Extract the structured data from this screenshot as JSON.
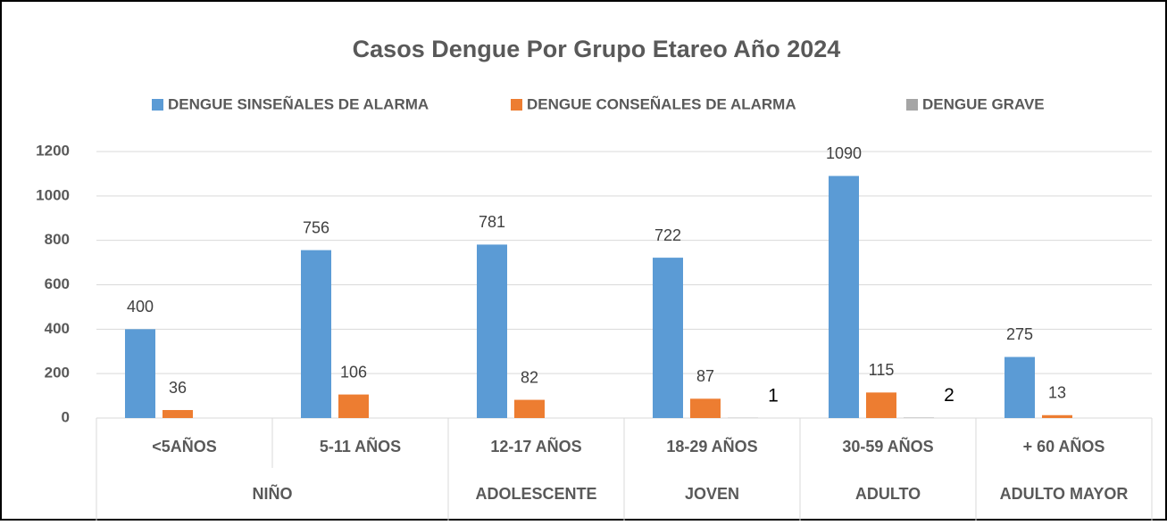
{
  "chart_data": {
    "type": "bar",
    "title": "Casos Dengue Por Grupo  Etareo Año 2024",
    "groups": [
      {
        "label": "NIÑO",
        "categories": [
          "<5AÑOS",
          "5-11 AÑOS"
        ]
      },
      {
        "label": "ADOLESCENTE",
        "categories": [
          "12-17 AÑOS"
        ]
      },
      {
        "label": "JOVEN",
        "categories": [
          "18-29 AÑOS"
        ]
      },
      {
        "label": "ADULTO",
        "categories": [
          "30-59 AÑOS"
        ]
      },
      {
        "label": "ADULTO MAYOR",
        "categories": [
          "+ 60 AÑOS"
        ]
      }
    ],
    "series": [
      {
        "name": "DENGUE SINSEÑALES DE ALARMA",
        "color": "#5b9bd5",
        "values": [
          400,
          756,
          781,
          722,
          1090,
          275
        ]
      },
      {
        "name": "DENGUE CONSEÑALES DE ALARMA",
        "color": "#ed7d31",
        "values": [
          36,
          106,
          82,
          87,
          115,
          13
        ]
      },
      {
        "name": "DENGUE GRAVE",
        "color": "#a5a5a5",
        "values": [
          null,
          null,
          null,
          1,
          2,
          null
        ]
      }
    ],
    "ylim": [
      0,
      1200
    ],
    "yticks": [
      0,
      200,
      400,
      600,
      800,
      1000,
      1200
    ],
    "grid": true,
    "legend": "top"
  }
}
